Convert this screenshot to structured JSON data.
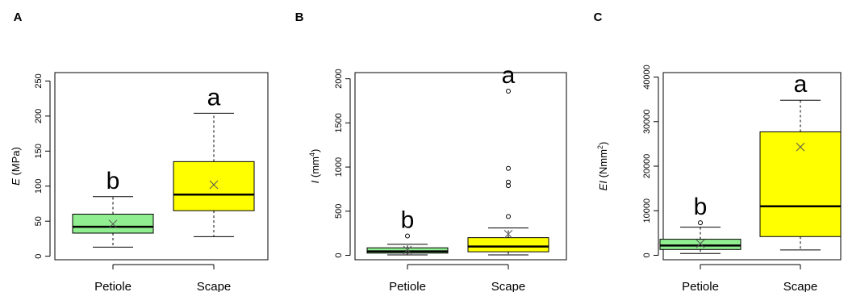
{
  "chart_data": [
    {
      "type": "box",
      "panel_label": "A",
      "ylabel": "(MPa)",
      "ylabel_symbol": "E",
      "ylabel_sup": "",
      "ylabel_rest": "",
      "ylim": [
        -5,
        262
      ],
      "yticks": [
        0,
        50,
        100,
        150,
        200,
        250
      ],
      "categories": [
        "Petiole",
        "Scape"
      ],
      "colors": [
        "#90ee90",
        "#ffff00"
      ],
      "boxes": [
        {
          "category": "Petiole",
          "whisker_low": 13,
          "q1": 33,
          "median": 42,
          "q3": 60,
          "whisker_high": 85,
          "mean": 46,
          "outliers": [],
          "letter": "b"
        },
        {
          "category": "Scape",
          "whisker_low": 28,
          "q1": 65,
          "median": 88,
          "q3": 135,
          "whisker_high": 204,
          "mean": 102,
          "outliers": [],
          "letter": "a"
        }
      ]
    },
    {
      "type": "box",
      "panel_label": "B",
      "ylabel": "",
      "ylabel_symbol": "I",
      "ylabel_sup": "4",
      "ylabel_rest": "(mm",
      "ylim": [
        -50,
        2070
      ],
      "yticks": [
        0,
        500,
        1000,
        1500,
        2000
      ],
      "categories": [
        "Petiole",
        "Scape"
      ],
      "colors": [
        "#90ee90",
        "#ffff00"
      ],
      "boxes": [
        {
          "category": "Petiole",
          "whisker_low": 5,
          "q1": 25,
          "median": 45,
          "q3": 85,
          "whisker_high": 125,
          "mean": 60,
          "outliers": [
            220
          ],
          "letter": "b"
        },
        {
          "category": "Scape",
          "whisker_low": 5,
          "q1": 40,
          "median": 100,
          "q3": 200,
          "whisker_high": 310,
          "mean": 240,
          "outliers": [
            440,
            790,
            830,
            985,
            1860
          ],
          "letter": "a"
        }
      ]
    },
    {
      "type": "box",
      "panel_label": "C",
      "ylabel": "",
      "ylabel_symbol": "EI",
      "ylabel_sup": "2",
      "ylabel_rest": "(Nmm",
      "ylim": [
        -1000,
        41000
      ],
      "yticks": [
        0,
        10000,
        20000,
        30000,
        40000
      ],
      "categories": [
        "Petiole",
        "Scape"
      ],
      "colors": [
        "#90ee90",
        "#ffff00"
      ],
      "boxes": [
        {
          "category": "Petiole",
          "whisker_low": 400,
          "q1": 1300,
          "median": 2200,
          "q3": 3600,
          "whisker_high": 6300,
          "mean": 2600,
          "outliers": [
            7300
          ],
          "letter": "b"
        },
        {
          "category": "Scape",
          "whisker_low": 1200,
          "q1": 4200,
          "median": 11000,
          "q3": 27700,
          "whisker_high": 34800,
          "mean": 24300,
          "outliers": [],
          "letter": "a"
        }
      ]
    }
  ]
}
